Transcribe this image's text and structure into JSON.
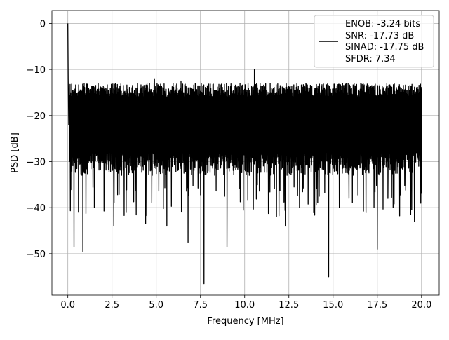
{
  "chart_data": {
    "type": "line",
    "xlabel": "Frequency [MHz]",
    "ylabel": "PSD [dB]",
    "xlim": [
      -0.9,
      21.0
    ],
    "ylim": [
      -59.0,
      2.8
    ],
    "xticks": [
      0.0,
      2.5,
      5.0,
      7.5,
      10.0,
      12.5,
      15.0,
      17.5,
      20.0
    ],
    "xtick_labels": [
      "0.0",
      "2.5",
      "5.0",
      "7.5",
      "10.0",
      "12.5",
      "15.0",
      "17.5",
      "20.0"
    ],
    "yticks": [
      0,
      -10,
      -20,
      -30,
      -40,
      -50
    ],
    "ytick_labels": [
      "0",
      "−10",
      "−20",
      "−30",
      "−40",
      "−50"
    ],
    "grid": true,
    "legend_position": "top-right",
    "legend": [
      "ENOB: -3.24 bits",
      "SNR: -17.73 dB",
      "SINAD: -17.75 dB",
      "SFDR: 7.34"
    ],
    "series": [
      {
        "color": "#000000",
        "x": [
          0.0,
          0.02,
          0.05,
          0.1,
          0.35,
          0.6,
          0.85,
          1.5,
          2.6,
          3.3,
          4.4,
          4.9,
          5.6,
          6.4,
          6.8,
          7.35,
          7.7,
          8.5,
          9.0,
          10.55,
          11.8,
          12.3,
          13.1,
          14.75,
          15.9,
          17.5,
          18.1,
          19.6,
          20.0
        ],
        "values": [
          0.0,
          -12.0,
          -22.0,
          -16.0,
          -48.5,
          -41.0,
          -49.5,
          -40.0,
          -44.0,
          -40.0,
          -43.5,
          -12.0,
          -44.0,
          -12.5,
          -47.5,
          -15.0,
          -56.5,
          -17.0,
          -48.5,
          -10.0,
          -42.0,
          -44.0,
          -40.0,
          -55.0,
          -38.0,
          -49.0,
          -38.0,
          -43.0,
          -15.0
        ],
        "band": {
          "from_x": 0.1,
          "to_x": 20.0,
          "typical_upper": [
            -16,
            -13
          ],
          "typical_lower": [
            -33,
            -28
          ],
          "deep_lower": [
            -42,
            -35
          ]
        }
      }
    ]
  }
}
